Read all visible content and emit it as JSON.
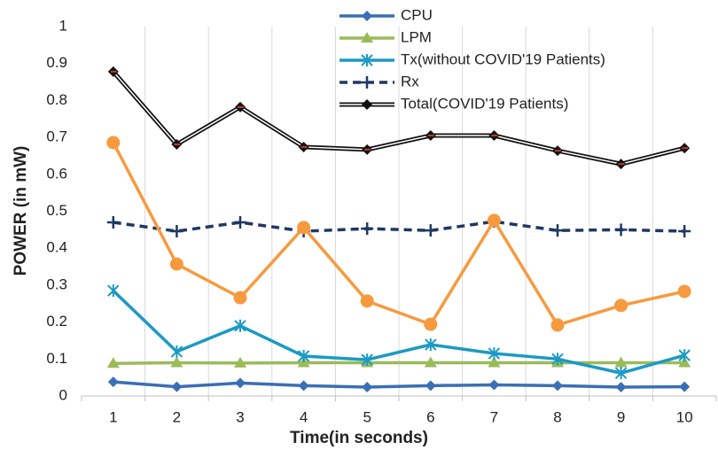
{
  "chart_data": {
    "type": "line",
    "y_label": "POWER (in mW)",
    "x_label": "Time(in seconds)",
    "categories": [
      "1",
      "2",
      "3",
      "4",
      "5",
      "6",
      "7",
      "8",
      "9",
      "10"
    ],
    "ylim": [
      0,
      1
    ],
    "yticks": [
      0,
      0.1,
      0.2,
      0.3,
      0.4,
      0.5,
      0.6,
      0.7,
      0.8,
      0.9,
      1
    ],
    "grid": "vertical",
    "legend": "top",
    "series": [
      {
        "name": "CPU",
        "color": "#3a6fb5",
        "marker": "diamond",
        "values": [
          0.038,
          0.025,
          0.035,
          0.028,
          0.024,
          0.028,
          0.03,
          0.028,
          0.024,
          0.025
        ]
      },
      {
        "name": "LPM",
        "color": "#9bbb59",
        "marker": "triangle",
        "values": [
          0.088,
          0.09,
          0.089,
          0.09,
          0.09,
          0.09,
          0.09,
          0.09,
          0.09,
          0.09
        ]
      },
      {
        "name": "Tx(without COVID'19 Patients)",
        "color": "#1b9ac4",
        "marker": "star",
        "values": [
          0.285,
          0.12,
          0.19,
          0.108,
          0.098,
          0.139,
          0.115,
          0.1,
          0.062,
          0.11
        ]
      },
      {
        "name": "Rx",
        "color": "#1f3864",
        "marker": "plus",
        "dash": true,
        "values": [
          0.47,
          0.446,
          0.47,
          0.446,
          0.453,
          0.448,
          0.472,
          0.448,
          0.45,
          0.446
        ]
      },
      {
        "name": "Total(COVID'19 Patients)",
        "color": "#111111",
        "marker": "diamond",
        "double": true,
        "values": [
          0.878,
          0.681,
          0.782,
          0.674,
          0.667,
          0.705,
          0.705,
          0.664,
          0.628,
          0.671
        ]
      },
      {
        "color": "#f79a3e",
        "marker": "circle",
        "values": [
          0.686,
          0.357,
          0.266,
          0.456,
          0.257,
          0.194,
          0.475,
          0.192,
          0.245,
          0.283
        ]
      }
    ]
  }
}
